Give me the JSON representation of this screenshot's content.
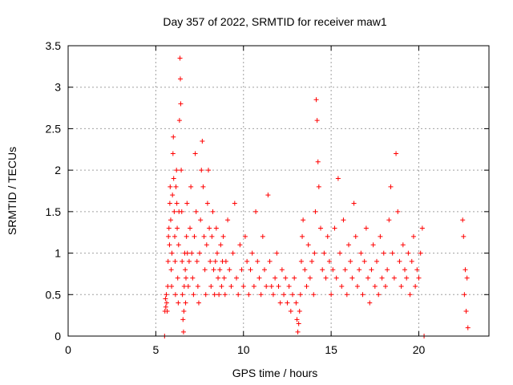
{
  "chart_data": {
    "type": "scatter",
    "title": "Day 357 of 2022, SRMTID for receiver maw1",
    "xlabel": "GPS time / hours",
    "ylabel": "SRMTID / TECUs",
    "xlim": [
      0,
      24
    ],
    "ylim": [
      0,
      3.5
    ],
    "x_ticks": [
      0,
      5,
      10,
      15,
      20
    ],
    "x_tick_labels": [
      "0",
      "5",
      "10",
      "15",
      "20"
    ],
    "y_ticks": [
      0,
      0.5,
      1,
      1.5,
      2,
      2.5,
      3,
      3.5
    ],
    "y_tick_labels": [
      "0",
      "0.5",
      "1",
      "1.5",
      "2",
      "2.5",
      "3",
      "3.5"
    ],
    "grid": true,
    "marker": "+",
    "color": "#ff0000",
    "series": [
      {
        "name": "SRMTID",
        "x": [
          5.5,
          5.52,
          5.55,
          5.57,
          5.6,
          5.62,
          5.65,
          5.68,
          5.7,
          5.72,
          5.75,
          5.78,
          5.8,
          5.82,
          5.85,
          5.88,
          5.9,
          5.92,
          5.95,
          5.98,
          6.0,
          6.02,
          6.05,
          6.08,
          6.1,
          6.12,
          6.15,
          6.18,
          6.2,
          6.22,
          6.25,
          6.28,
          6.3,
          6.32,
          6.35,
          6.38,
          6.4,
          6.42,
          6.45,
          6.48,
          6.5,
          6.52,
          6.55,
          6.58,
          6.6,
          6.62,
          6.65,
          6.68,
          6.7,
          6.72,
          6.75,
          6.78,
          6.8,
          6.85,
          6.9,
          6.95,
          7.0,
          7.05,
          7.1,
          7.15,
          7.2,
          7.25,
          7.3,
          7.35,
          7.4,
          7.45,
          7.5,
          7.55,
          7.6,
          7.65,
          7.7,
          7.75,
          7.8,
          7.85,
          7.9,
          7.95,
          8.0,
          8.05,
          8.1,
          8.15,
          8.2,
          8.25,
          8.3,
          8.35,
          8.4,
          8.45,
          8.5,
          8.55,
          8.6,
          8.65,
          8.7,
          8.75,
          8.8,
          8.85,
          8.9,
          8.95,
          9.0,
          9.1,
          9.2,
          9.3,
          9.4,
          9.5,
          9.6,
          9.7,
          9.8,
          9.9,
          10.0,
          10.1,
          10.2,
          10.3,
          10.4,
          10.5,
          10.6,
          10.7,
          10.8,
          10.9,
          11.0,
          11.1,
          11.2,
          11.3,
          11.4,
          11.5,
          11.6,
          11.7,
          11.8,
          11.9,
          12.0,
          12.1,
          12.2,
          12.3,
          12.4,
          12.5,
          12.6,
          12.7,
          12.8,
          12.9,
          13.0,
          13.05,
          13.1,
          13.15,
          13.2,
          13.25,
          13.3,
          13.35,
          13.4,
          13.5,
          13.6,
          13.7,
          13.8,
          13.9,
          14.0,
          14.05,
          14.1,
          14.15,
          14.2,
          14.25,
          14.3,
          14.4,
          14.5,
          14.6,
          14.7,
          14.8,
          14.9,
          15.0,
          15.1,
          15.2,
          15.3,
          15.4,
          15.5,
          15.6,
          15.7,
          15.8,
          15.9,
          16.0,
          16.1,
          16.2,
          16.3,
          16.4,
          16.5,
          16.6,
          16.7,
          16.8,
          16.9,
          17.0,
          17.1,
          17.2,
          17.3,
          17.4,
          17.5,
          17.6,
          17.7,
          17.8,
          17.9,
          18.0,
          18.1,
          18.2,
          18.3,
          18.4,
          18.5,
          18.6,
          18.7,
          18.8,
          18.9,
          19.0,
          19.1,
          19.2,
          19.3,
          19.4,
          19.5,
          19.6,
          19.7,
          19.8,
          19.9,
          20.0,
          20.1,
          20.2,
          20.3,
          22.5,
          22.55,
          22.6,
          22.65,
          22.7,
          22.75,
          22.8
        ],
        "y": [
          0.0,
          0.3,
          0.45,
          0.35,
          0.5,
          0.4,
          0.3,
          0.6,
          0.9,
          1.2,
          1.3,
          1.1,
          1.6,
          1.8,
          1.4,
          0.8,
          0.6,
          1.0,
          1.7,
          2.2,
          2.4,
          1.9,
          1.5,
          1.2,
          0.9,
          0.5,
          1.8,
          2.0,
          1.6,
          1.3,
          0.7,
          0.4,
          1.1,
          1.5,
          2.6,
          3.35,
          3.1,
          2.8,
          2.0,
          1.5,
          0.9,
          0.5,
          0.2,
          0.05,
          0.3,
          0.6,
          1.0,
          0.8,
          0.4,
          0.7,
          1.2,
          1.6,
          1.0,
          0.6,
          0.9,
          1.3,
          1.8,
          1.0,
          0.7,
          0.5,
          1.2,
          2.2,
          1.5,
          0.9,
          0.6,
          0.4,
          1.0,
          1.4,
          2.0,
          2.35,
          1.8,
          1.2,
          0.8,
          0.5,
          1.1,
          1.6,
          2.0,
          1.3,
          0.9,
          0.6,
          1.2,
          1.5,
          0.8,
          0.5,
          0.9,
          1.3,
          1.0,
          0.7,
          0.5,
          0.8,
          1.1,
          0.6,
          0.9,
          1.2,
          0.7,
          0.5,
          0.9,
          1.4,
          0.8,
          0.6,
          1.0,
          1.6,
          0.7,
          0.5,
          1.1,
          0.8,
          0.6,
          1.2,
          0.9,
          0.5,
          0.8,
          1.0,
          0.6,
          1.5,
          0.9,
          0.7,
          0.5,
          1.2,
          0.8,
          0.6,
          1.7,
          0.9,
          0.6,
          0.5,
          0.7,
          1.0,
          0.6,
          0.4,
          0.8,
          0.5,
          0.7,
          0.4,
          0.6,
          0.3,
          0.5,
          0.7,
          0.4,
          0.2,
          0.05,
          0.15,
          0.3,
          0.5,
          0.9,
          1.2,
          1.4,
          0.8,
          0.6,
          1.1,
          0.7,
          0.9,
          0.5,
          1.0,
          1.5,
          2.85,
          2.6,
          2.1,
          1.8,
          1.3,
          0.8,
          1.0,
          0.7,
          1.2,
          0.9,
          0.5,
          0.8,
          1.3,
          0.7,
          1.9,
          1.0,
          0.6,
          1.4,
          0.8,
          0.5,
          1.1,
          0.9,
          0.7,
          1.6,
          1.2,
          0.6,
          0.8,
          1.0,
          0.5,
          0.9,
          1.3,
          0.7,
          0.4,
          0.8,
          1.1,
          0.6,
          0.9,
          0.5,
          1.2,
          0.7,
          1.0,
          0.6,
          0.8,
          1.4,
          1.8,
          1.0,
          0.7,
          2.2,
          1.5,
          0.9,
          0.6,
          1.1,
          0.8,
          0.7,
          1.0,
          0.5,
          0.9,
          1.2,
          0.6,
          0.8,
          0.7,
          1.0,
          1.3,
          0.0,
          1.4,
          1.2,
          0.5,
          0.8,
          0.3,
          0.7,
          0.1
        ]
      }
    ]
  }
}
